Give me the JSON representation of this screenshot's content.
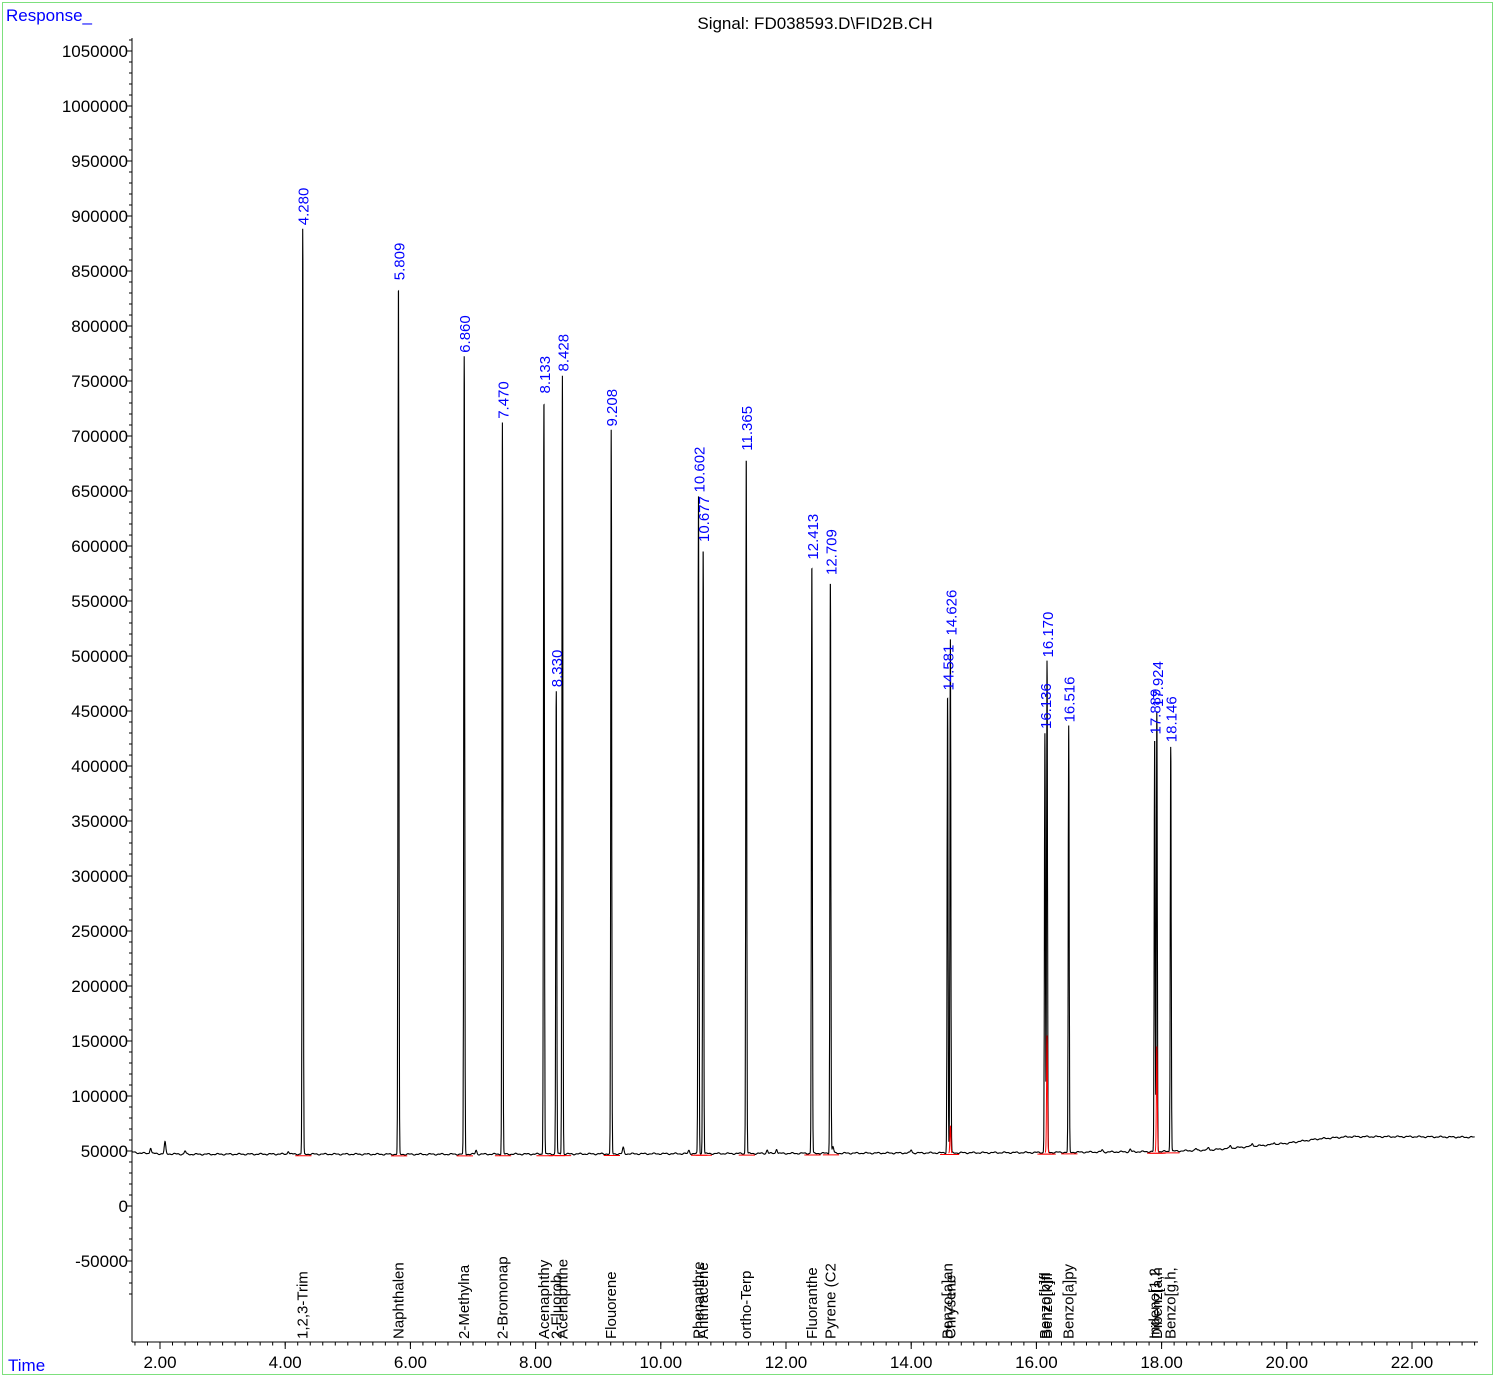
{
  "chart_data": {
    "type": "line",
    "title": "Signal: FD038593.D\\FID2B.CH",
    "ylabel": "Response_",
    "xlabel": "Time",
    "xlim": [
      1.55,
      23.0
    ],
    "ylim": [
      -110000,
      1080000
    ],
    "x_ticks": [
      2.0,
      4.0,
      6.0,
      8.0,
      10.0,
      12.0,
      14.0,
      16.0,
      18.0,
      20.0,
      22.0
    ],
    "x_tick_labels": [
      "2.00",
      "4.00",
      "6.00",
      "8.00",
      "10.00",
      "12.00",
      "14.00",
      "16.00",
      "18.00",
      "20.00",
      "22.00"
    ],
    "y_ticks": [
      -50000,
      0,
      50000,
      100000,
      150000,
      200000,
      250000,
      300000,
      350000,
      400000,
      450000,
      500000,
      550000,
      600000,
      650000,
      700000,
      750000,
      800000,
      850000,
      900000,
      950000,
      1000000,
      1050000
    ],
    "y_tick_labels": [
      "-50000",
      "0",
      "50000",
      "100000",
      "150000",
      "200000",
      "250000",
      "300000",
      "350000",
      "400000",
      "450000",
      "500000",
      "550000",
      "600000",
      "650000",
      "700000",
      "750000",
      "800000",
      "850000",
      "900000",
      "950000",
      "1000000",
      "1050000"
    ],
    "baseline": [
      [
        1.55,
        49000
      ],
      [
        1.7,
        48000
      ],
      [
        2.0,
        47500
      ],
      [
        2.5,
        47000
      ],
      [
        4.0,
        47200
      ],
      [
        6.0,
        47000
      ],
      [
        8.0,
        47200
      ],
      [
        10.0,
        47500
      ],
      [
        12.0,
        47800
      ],
      [
        14.0,
        48200
      ],
      [
        16.0,
        48600
      ],
      [
        18.0,
        49500
      ],
      [
        18.8,
        51000
      ],
      [
        19.4,
        54000
      ],
      [
        20.0,
        57000
      ],
      [
        20.5,
        61000
      ],
      [
        21.0,
        63000
      ],
      [
        22.0,
        63000
      ],
      [
        23.0,
        62500
      ]
    ],
    "minor_bumps": [
      [
        1.85,
        53000
      ],
      [
        2.08,
        58000
      ],
      [
        2.4,
        50000
      ],
      [
        4.05,
        50000
      ],
      [
        7.05,
        50500
      ],
      [
        9.4,
        53000
      ],
      [
        10.45,
        50500
      ],
      [
        11.7,
        51000
      ],
      [
        11.85,
        52000
      ],
      [
        12.75,
        54000
      ],
      [
        14.0,
        51000
      ],
      [
        17.05,
        51000
      ],
      [
        17.5,
        51500
      ],
      [
        18.55,
        52000
      ],
      [
        18.75,
        53000
      ],
      [
        19.1,
        55000
      ],
      [
        19.45,
        57000
      ],
      [
        19.8,
        58000
      ],
      [
        20.2,
        59000
      ]
    ],
    "peaks": [
      {
        "rt": 4.28,
        "rt_label": "4.280",
        "height": 888000,
        "compound": "1,2,3-Trim"
      },
      {
        "rt": 5.809,
        "rt_label": "5.809",
        "height": 838000,
        "compound": "Naphthalen"
      },
      {
        "rt": 6.86,
        "rt_label": "6.860",
        "height": 772000,
        "compound": "2-Methylna"
      },
      {
        "rt": 7.47,
        "rt_label": "7.470",
        "height": 712000,
        "compound": "2-Bromonap"
      },
      {
        "rt": 8.133,
        "rt_label": "8.133",
        "height": 735000,
        "compound": "Acenaphthy"
      },
      {
        "rt": 8.33,
        "rt_label": "8.330",
        "height": 468000,
        "compound": "2-Fluorob"
      },
      {
        "rt": 8.428,
        "rt_label": "8.428",
        "height": 755000,
        "compound": "Acenaphthe"
      },
      {
        "rt": 9.208,
        "rt_label": "9.208",
        "height": 705000,
        "compound": "Flouorene"
      },
      {
        "rt": 10.602,
        "rt_label": "10.602",
        "height": 645000,
        "compound": "Phenanthre"
      },
      {
        "rt": 10.677,
        "rt_label": "10.677",
        "height": 600000,
        "compound": "Anthracene"
      },
      {
        "rt": 11.365,
        "rt_label": "11.365",
        "height": 683000,
        "compound": "ortho-Terp"
      },
      {
        "rt": 12.413,
        "rt_label": "12.413",
        "height": 584000,
        "compound": "Fluoranthe"
      },
      {
        "rt": 12.709,
        "rt_label": "12.709",
        "height": 570000,
        "compound": "Pyrene (C2"
      },
      {
        "rt": 14.581,
        "rt_label": "14.581",
        "height": 465000,
        "compound": "Benzo[a]an"
      },
      {
        "rt": 14.626,
        "rt_label": "14.626",
        "height": 515000,
        "compound": "Chrysene"
      },
      {
        "rt": 16.136,
        "rt_label": "16.136",
        "height": 430000,
        "compound": "Benzo[b]fl"
      },
      {
        "rt": 16.17,
        "rt_label": "16.170",
        "height": 495000,
        "compound": "Benzo[k]fl"
      },
      {
        "rt": 16.516,
        "rt_label": "16.516",
        "height": 436000,
        "compound": "Benzo[a]py"
      },
      {
        "rt": 17.889,
        "rt_label": "17.889",
        "height": 425000,
        "compound": "Indeno[1,2"
      },
      {
        "rt": 17.924,
        "rt_label": "17.924",
        "height": 450000,
        "compound": "Dibenz[a,h"
      },
      {
        "rt": 18.146,
        "rt_label": "18.146",
        "height": 418000,
        "compound": "Benzo[g,h,"
      }
    ],
    "integration_peaks": [
      [
        16.17,
        155000
      ],
      [
        17.924,
        145000
      ],
      [
        14.626,
        73000
      ]
    ],
    "colors": {
      "trace": "#000000",
      "rt_label": "#0000ff",
      "header": "#0000ff",
      "frame": "#7de07d",
      "integration": "#ff0000"
    }
  }
}
